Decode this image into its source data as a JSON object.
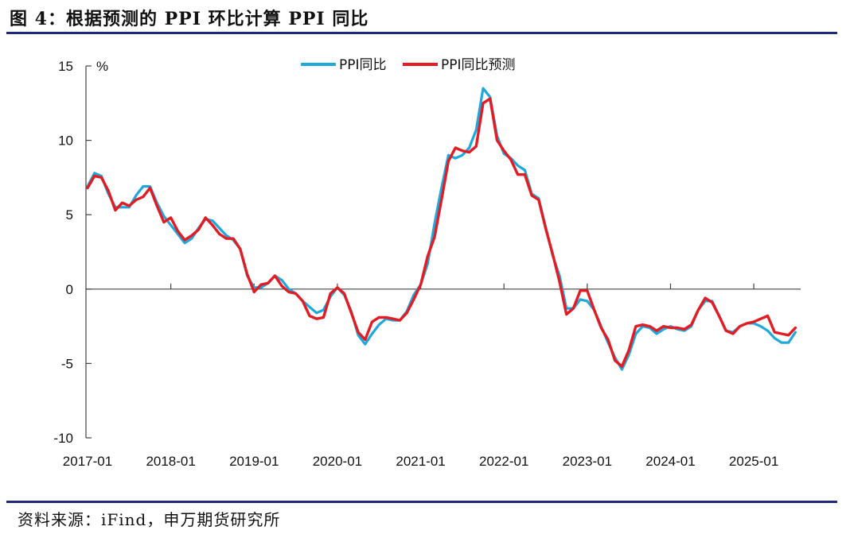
{
  "title": "图 4：根据预测的 PPI 环比计算 PPI 同比",
  "source": "资料来源：iFind，申万期货研究所",
  "chart_data": {
    "type": "line",
    "ylabel_unit": "%",
    "ylim": [
      -10,
      15
    ],
    "yticks": [
      "15",
      "10",
      "5",
      "0",
      "-5",
      "-10"
    ],
    "ytick_values": [
      15,
      10,
      5,
      0,
      -5,
      -10
    ],
    "xticks": [
      "2017-01",
      "2018-01",
      "2019-01",
      "2020-01",
      "2021-01",
      "2022-01",
      "2023-01",
      "2024-01",
      "2025-01"
    ],
    "start": "2017-01",
    "legend_position": "top-center",
    "grid": false,
    "series": [
      {
        "name": "PPI同比",
        "color": "#1fa8dc",
        "values": [
          6.9,
          7.8,
          7.6,
          6.4,
          5.5,
          5.5,
          5.5,
          6.3,
          6.9,
          6.9,
          5.8,
          4.9,
          4.3,
          3.7,
          3.1,
          3.4,
          4.1,
          4.7,
          4.6,
          4.1,
          3.6,
          3.3,
          2.7,
          0.9,
          0.1,
          0.1,
          0.4,
          0.9,
          0.6,
          0.0,
          -0.3,
          -0.8,
          -1.2,
          -1.6,
          -1.4,
          -0.5,
          0.1,
          -0.4,
          -1.5,
          -3.1,
          -3.7,
          -3.0,
          -2.4,
          -2.0,
          -2.1,
          -2.1,
          -1.5,
          -0.4,
          0.3,
          1.7,
          4.4,
          6.8,
          9.0,
          8.8,
          9.0,
          9.5,
          10.7,
          13.5,
          12.9,
          10.3,
          9.1,
          8.8,
          8.3,
          8.0,
          6.4,
          6.1,
          4.2,
          2.3,
          0.9,
          -1.3,
          -1.3,
          -0.7,
          -0.8,
          -1.4,
          -2.5,
          -3.6,
          -4.6,
          -5.4,
          -4.4,
          -3.0,
          -2.5,
          -2.6,
          -3.0,
          -2.7,
          -2.5,
          -2.7,
          -2.8,
          -2.5,
          -1.4,
          -0.8,
          -0.8,
          -1.8,
          -2.8,
          -2.9,
          -2.5,
          -2.3,
          -2.3,
          -2.5,
          -2.8,
          -3.3,
          -3.6,
          -3.6,
          -2.9
        ]
      },
      {
        "name": "PPI同比预测",
        "color": "#e31b23",
        "values": [
          6.8,
          7.6,
          7.5,
          6.6,
          5.3,
          5.8,
          5.6,
          6.0,
          6.2,
          6.8,
          5.6,
          4.5,
          4.8,
          3.9,
          3.3,
          3.6,
          4.0,
          4.8,
          4.3,
          3.7,
          3.4,
          3.4,
          2.7,
          1.0,
          -0.2,
          0.3,
          0.4,
          0.9,
          0.2,
          -0.2,
          -0.3,
          -0.8,
          -1.8,
          -2.0,
          -1.9,
          -0.3,
          0.1,
          -0.3,
          -1.6,
          -2.9,
          -3.4,
          -2.2,
          -1.9,
          -1.9,
          -2.0,
          -2.1,
          -1.6,
          -0.7,
          0.3,
          2.2,
          3.5,
          6.0,
          8.6,
          9.5,
          9.3,
          9.2,
          9.6,
          12.5,
          12.8,
          10.0,
          9.3,
          8.7,
          7.7,
          7.7,
          6.3,
          6.0,
          4.1,
          2.4,
          0.5,
          -1.7,
          -1.3,
          -0.1,
          -0.1,
          -1.4,
          -2.6,
          -3.4,
          -4.8,
          -5.2,
          -4.1,
          -2.5,
          -2.4,
          -2.5,
          -2.8,
          -2.5,
          -2.6,
          -2.6,
          -2.7,
          -2.4,
          -1.4,
          -0.6,
          -0.9,
          -1.8,
          -2.8,
          -3.0,
          -2.5,
          -2.3,
          -2.2,
          -2.0,
          -1.8,
          -2.9,
          -3.0,
          -3.1,
          -2.6
        ]
      }
    ]
  }
}
